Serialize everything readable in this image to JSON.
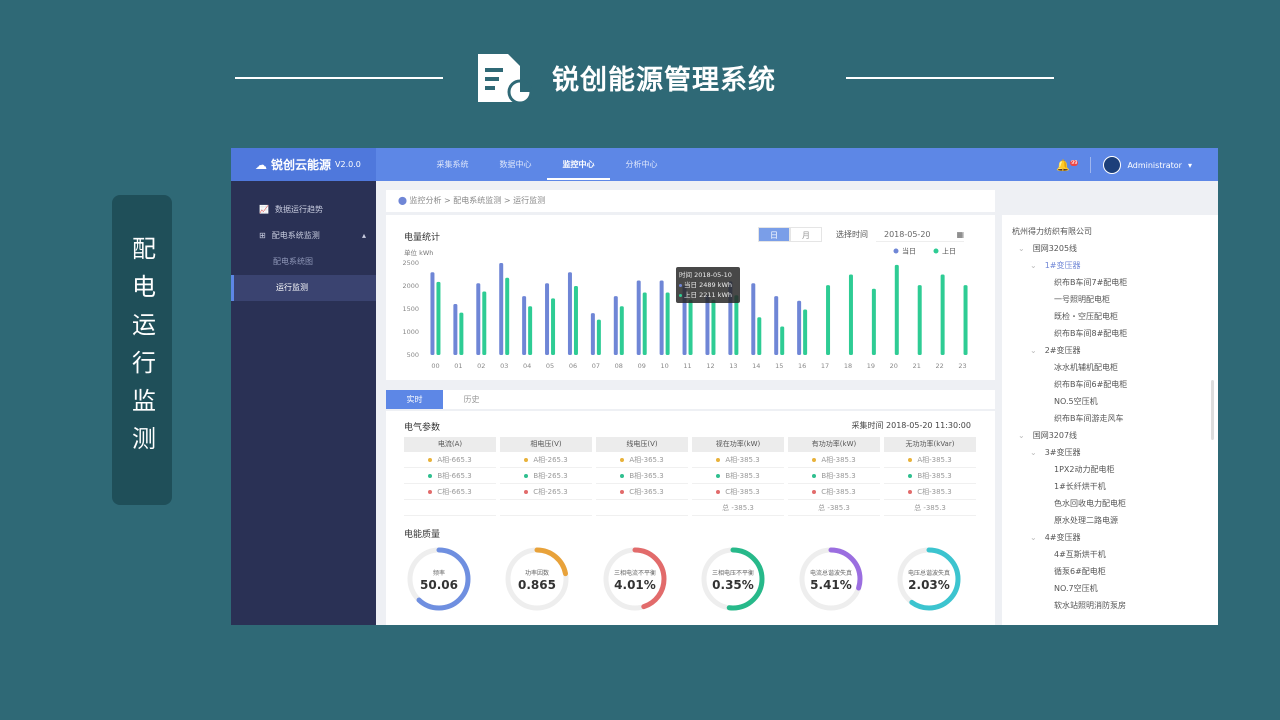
{
  "slide": {
    "title": "锐创能源管理系统",
    "side_label": "配电运行监测"
  },
  "app": {
    "logo": "锐创云能源",
    "version": "V2.0.0",
    "nav": [
      "采集系统",
      "数据中心",
      "监控中心",
      "分析中心"
    ],
    "nav_active": 2,
    "user": "Administrator",
    "notification_count": "99",
    "sidebar": [
      {
        "label": "数据运行趋势",
        "level": 0
      },
      {
        "label": "配电系统监测",
        "level": 0
      },
      {
        "label": "配电系统图",
        "level": 1
      },
      {
        "label": "运行监测",
        "level": 1,
        "selected": true
      }
    ],
    "breadcrumb": "监控分析 > 配电系统监测 > 运行监测",
    "chart_panel": {
      "title": "电量统计",
      "toggle": [
        "日",
        "月"
      ],
      "date_label": "选择时间",
      "date": "2018-05-20",
      "unit": "单位  kWh",
      "tooltip": {
        "time": "时间 2018-05-10",
        "today": "当日 2489 kWh",
        "yesterday": "上日 2211 kWh"
      }
    },
    "tabs": [
      "实时",
      "历史"
    ],
    "params": {
      "title": "电气参数",
      "time": "采集时间  2018-05-20  11:30:00",
      "columns": [
        {
          "header": "电流(A)",
          "rows": [
            "A相-665.3",
            "B相-665.3",
            "C相-665.3",
            ""
          ]
        },
        {
          "header": "相电压(V)",
          "rows": [
            "A相-265.3",
            "B相-265.3",
            "C相-265.3",
            ""
          ]
        },
        {
          "header": "线电压(V)",
          "rows": [
            "A相-365.3",
            "B相-365.3",
            "C相-365.3",
            ""
          ]
        },
        {
          "header": "视在功率(kW)",
          "rows": [
            "A相-385.3",
            "B相-385.3",
            "C相-385.3",
            "总 -385.3"
          ]
        },
        {
          "header": "有功功率(kW)",
          "rows": [
            "A相-385.3",
            "B相-385.3",
            "C相-385.3",
            "总 -385.3"
          ]
        },
        {
          "header": "无功功率(kVar)",
          "rows": [
            "A相-385.3",
            "B相-385.3",
            "C相-385.3",
            "总 -385.3"
          ]
        }
      ],
      "phase_colors": [
        "#e8b23a",
        "#2fbf8f",
        "#e26b6b"
      ]
    },
    "quality": {
      "title": "电能质量",
      "gauges": [
        {
          "label": "频率",
          "value": "50.06",
          "fill": 0.62,
          "color": "#6f8fe0"
        },
        {
          "label": "功率因数",
          "value": "0.865",
          "fill": 0.22,
          "color": "#e8a23a"
        },
        {
          "label": "三相电流不平衡",
          "value": "4.01%",
          "fill": 0.45,
          "color": "#e26b6b"
        },
        {
          "label": "三相电压不平衡",
          "value": "0.35%",
          "fill": 0.52,
          "color": "#27b98a"
        },
        {
          "label": "电流总谐波失真",
          "value": "5.41%",
          "fill": 0.3,
          "color": "#9b6ee0"
        },
        {
          "label": "电压总谐波失真",
          "value": "2.03%",
          "fill": 0.6,
          "color": "#3cc4cf"
        }
      ]
    },
    "tree": [
      {
        "label": "杭州得力纺织有限公司",
        "level": 0
      },
      {
        "label": "国网3205线",
        "level": 1
      },
      {
        "label": "1#变压器",
        "level": 2,
        "active": true
      },
      {
        "label": "织布B车间7#配电柜",
        "level": 3
      },
      {
        "label": "一号照明配电柜",
        "level": 3
      },
      {
        "label": "既检・空压配电柜",
        "level": 3
      },
      {
        "label": "织布B车间8#配电柜",
        "level": 3
      },
      {
        "label": "2#变压器",
        "level": 2
      },
      {
        "label": "冰水机辅机配电柜",
        "level": 3
      },
      {
        "label": "织布B车间6#配电柜",
        "level": 3
      },
      {
        "label": "NO.5空压机",
        "level": 3
      },
      {
        "label": "织布B车间游走风车",
        "level": 3
      },
      {
        "label": "国网3207线",
        "level": 1
      },
      {
        "label": "3#变压器",
        "level": 2
      },
      {
        "label": "1PX2动力配电柜",
        "level": 3
      },
      {
        "label": "1#长纤烘干机",
        "level": 3
      },
      {
        "label": "色水回收电力配电柜",
        "level": 3
      },
      {
        "label": "原水处理二路电源",
        "level": 3
      },
      {
        "label": "4#变压器",
        "level": 2
      },
      {
        "label": "4#互斯烘干机",
        "level": 3
      },
      {
        "label": "循泵6#配电柜",
        "level": 3
      },
      {
        "label": "NO.7空压机",
        "level": 3
      },
      {
        "label": "软水站照明消防泵房",
        "level": 3
      }
    ]
  },
  "chart_data": {
    "type": "bar",
    "xlabel": "",
    "ylabel": "单位  kWh",
    "ylim": [
      500,
      2500
    ],
    "yticks": [
      500,
      1000,
      1500,
      2000,
      2500
    ],
    "categories": [
      "00",
      "01",
      "02",
      "03",
      "04",
      "05",
      "06",
      "07",
      "08",
      "09",
      "10",
      "11",
      "12",
      "13",
      "14",
      "15",
      "16",
      "17",
      "18",
      "19",
      "20",
      "21",
      "22",
      "23"
    ],
    "legend_position": "top-right",
    "series": [
      {
        "name": "当日",
        "color": "#6f86d6",
        "values": [
          2300,
          1610,
          2060,
          2500,
          1780,
          2060,
          2300,
          1410,
          1780,
          2120,
          2120,
          2000,
          1800,
          2100,
          2060,
          1780,
          1680,
          null,
          null,
          null,
          null,
          null,
          null,
          null
        ]
      },
      {
        "name": "上日",
        "color": "#2ecc94",
        "values": [
          2090,
          1420,
          1880,
          2180,
          1560,
          1730,
          2000,
          1270,
          1560,
          1860,
          1860,
          1700,
          1700,
          1800,
          1320,
          1120,
          1490,
          2020,
          2250,
          1940,
          2460,
          2020,
          2250,
          2020
        ]
      }
    ]
  }
}
